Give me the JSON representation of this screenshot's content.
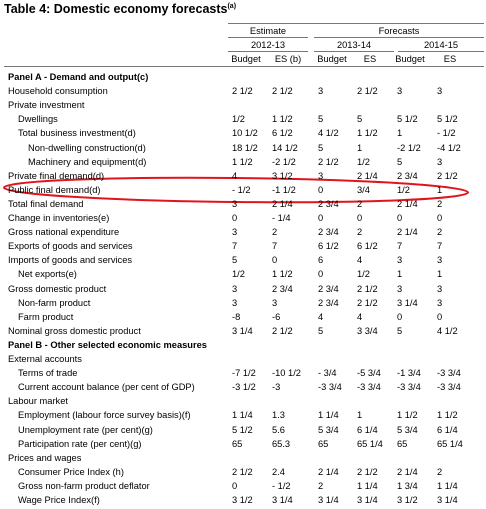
{
  "title": "Table 4: Domestic economy forecasts",
  "title_note": "(a)",
  "header": {
    "groups": [
      "Estimate",
      "Forecasts"
    ],
    "years": [
      "2012-13",
      "2013-14",
      "2014-15"
    ],
    "columns": [
      "Budget",
      "ES (b)",
      "Budget",
      "ES",
      "Budget",
      "ES"
    ]
  },
  "panels": [
    {
      "title": "Panel A - Demand and output(c)",
      "rows": [
        {
          "label": "Household consumption",
          "level": 0,
          "values": [
            "2 1/2",
            "2 1/2",
            "3",
            "2 1/2",
            "3",
            "3"
          ]
        },
        {
          "label": "Private investment",
          "level": 0
        },
        {
          "label": "Dwellings",
          "level": 1,
          "values": [
            "1/2",
            "1 1/2",
            "5",
            "5",
            "5 1/2",
            "5 1/2"
          ]
        },
        {
          "label": "Total business investment(d)",
          "level": 1,
          "values": [
            "10 1/2",
            "6 1/2",
            "4 1/2",
            "1 1/2",
            "1",
            "- 1/2"
          ]
        },
        {
          "label": "Non-dwelling construction(d)",
          "level": 2,
          "values": [
            "18 1/2",
            "14 1/2",
            "5",
            "1",
            "-2 1/2",
            "-4 1/2"
          ]
        },
        {
          "label": "Machinery and equipment(d)",
          "level": 2,
          "values": [
            "1 1/2",
            "-2 1/2",
            "2 1/2",
            "1/2",
            "5",
            "3"
          ]
        },
        {
          "label": "Private final demand(d)",
          "level": 0,
          "values": [
            "4",
            "3 1/2",
            "3",
            "2 1/4",
            "2 3/4",
            "2 1/2"
          ]
        },
        {
          "label": "Public final demand(d)",
          "level": 0,
          "values": [
            "- 1/2",
            "-1 1/2",
            "0",
            "3/4",
            "1/2",
            "1"
          ]
        },
        {
          "label": "Total final demand",
          "level": 0,
          "values": [
            "3",
            "2 1/4",
            "2 3/4",
            "2",
            "2 1/4",
            "2"
          ]
        },
        {
          "label": "Change in inventories(e)",
          "level": 0,
          "values": [
            "0",
            "- 1/4",
            "0",
            "0",
            "0",
            "0"
          ]
        },
        {
          "label": "Gross national expenditure",
          "level": 0,
          "values": [
            "3",
            "2",
            "2 3/4",
            "2",
            "2 1/4",
            "2"
          ]
        },
        {
          "label": "Exports of goods and services",
          "level": 0,
          "values": [
            "7",
            "7",
            "6 1/2",
            "6 1/2",
            "7",
            "7"
          ]
        },
        {
          "label": "Imports of goods and services",
          "level": 0,
          "values": [
            "5",
            "0",
            "6",
            "4",
            "3",
            "3"
          ]
        },
        {
          "label": "Net exports(e)",
          "level": 1,
          "values": [
            "1/2",
            "1 1/2",
            "0",
            "1/2",
            "1",
            "1"
          ]
        },
        {
          "label": "Gross domestic product",
          "level": 0,
          "values": [
            "3",
            "2 3/4",
            "2 3/4",
            "2 1/2",
            "3",
            "3"
          ]
        },
        {
          "label": "Non-farm product",
          "level": 1,
          "values": [
            "3",
            "3",
            "2 3/4",
            "2 1/2",
            "3 1/4",
            "3"
          ]
        },
        {
          "label": "Farm product",
          "level": 1,
          "values": [
            "-8",
            "-6",
            "4",
            "4",
            "0",
            "0"
          ]
        },
        {
          "label": "Nominal gross domestic product",
          "level": 0,
          "values": [
            "3 1/4",
            "2 1/2",
            "5",
            "3 3/4",
            "5",
            "4 1/2"
          ]
        }
      ]
    },
    {
      "title": "Panel B - Other selected economic measures",
      "rows": [
        {
          "label": "External accounts",
          "level": 0
        },
        {
          "label": "Terms of trade",
          "level": 1,
          "values": [
            "-7 1/2",
            "-10 1/2",
            "- 3/4",
            "-5 3/4",
            "-1 3/4",
            "-3 3/4"
          ]
        },
        {
          "label": "Current account balance (per cent of GDP)",
          "level": 1,
          "values": [
            "-3 1/2",
            "-3",
            "-3 3/4",
            "-3 3/4",
            "-3 3/4",
            "-3 3/4"
          ]
        },
        {
          "label": "Labour market",
          "level": 0
        },
        {
          "label": "Employment (labour force survey basis)(f)",
          "level": 1,
          "values": [
            "1 1/4",
            "1.3",
            "1 1/4",
            "1",
            "1 1/2",
            "1 1/2"
          ]
        },
        {
          "label": "Unemployment rate (per cent)(g)",
          "level": 1,
          "values": [
            "5 1/2",
            "5.6",
            "5 3/4",
            "6 1/4",
            "5 3/4",
            "6 1/4"
          ]
        },
        {
          "label": "Participation rate (per cent)(g)",
          "level": 1,
          "values": [
            "65",
            "65.3",
            "65",
            "65 1/4",
            "65",
            "65 1/4"
          ]
        },
        {
          "label": "Prices and wages",
          "level": 0
        },
        {
          "label": "Consumer Price Index (h)",
          "level": 1,
          "values": [
            "2 1/2",
            "2.4",
            "2 1/4",
            "2 1/2",
            "2 1/4",
            "2"
          ]
        },
        {
          "label": "Gross non-farm product deflator",
          "level": 1,
          "values": [
            "0",
            "- 1/2",
            "2",
            "1 1/4",
            "1 3/4",
            "1 1/4"
          ]
        },
        {
          "label": "Wage Price Index(f)",
          "level": 1,
          "values": [
            "3 1/2",
            "3 1/4",
            "3 1/4",
            "3 1/4",
            "3 1/2",
            "3 1/4"
          ]
        }
      ]
    }
  ]
}
